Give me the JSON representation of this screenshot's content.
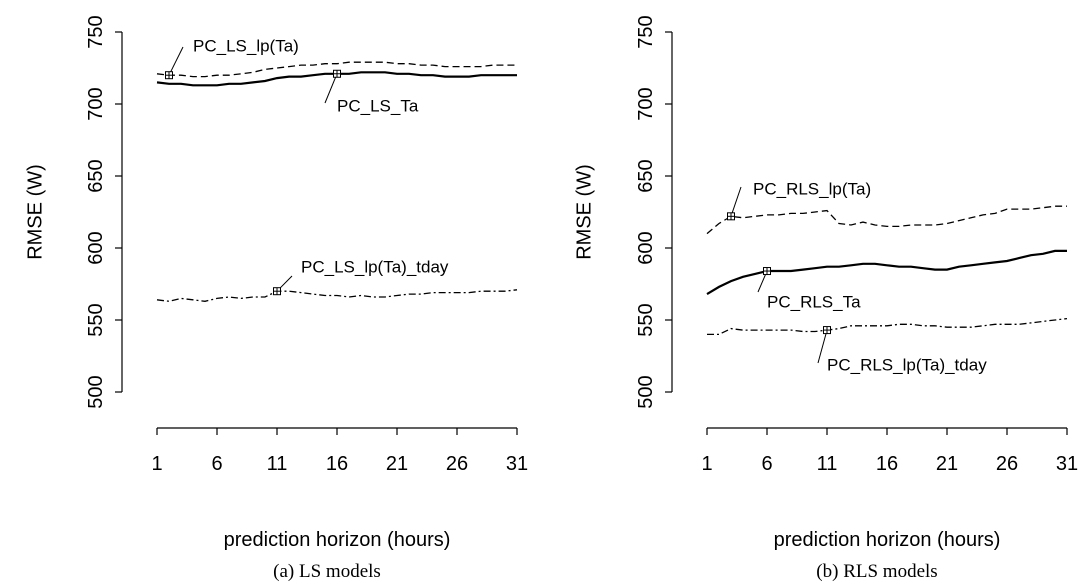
{
  "chart_data": [
    {
      "type": "line",
      "caption": "(a) LS models",
      "xlabel": "prediction horizon (hours)",
      "ylabel": "RMSE (W)",
      "xlim": [
        1,
        31
      ],
      "ylim": [
        500,
        750
      ],
      "xticks": [
        1,
        6,
        11,
        16,
        21,
        26,
        31
      ],
      "yticks": [
        500,
        550,
        600,
        650,
        700,
        750
      ],
      "series": [
        {
          "name": "PC_LS_lp(Ta)",
          "style": "dashed",
          "x": [
            1,
            2,
            3,
            4,
            5,
            6,
            7,
            8,
            9,
            10,
            11,
            12,
            13,
            14,
            15,
            16,
            17,
            18,
            19,
            20,
            21,
            22,
            23,
            24,
            25,
            26,
            27,
            28,
            29,
            30,
            31
          ],
          "values": [
            721,
            720,
            720,
            719,
            719,
            720,
            720,
            721,
            722,
            724,
            725,
            726,
            727,
            727,
            728,
            728,
            729,
            729,
            729,
            729,
            728,
            728,
            727,
            727,
            726,
            726,
            726,
            726,
            727,
            727,
            727
          ],
          "label_at_x": 2
        },
        {
          "name": "PC_LS_Ta",
          "style": "solid",
          "x": [
            1,
            2,
            3,
            4,
            5,
            6,
            7,
            8,
            9,
            10,
            11,
            12,
            13,
            14,
            15,
            16,
            17,
            18,
            19,
            20,
            21,
            22,
            23,
            24,
            25,
            26,
            27,
            28,
            29,
            30,
            31
          ],
          "values": [
            715,
            714,
            714,
            713,
            713,
            713,
            714,
            714,
            715,
            716,
            718,
            719,
            719,
            720,
            721,
            721,
            721,
            722,
            722,
            722,
            721,
            721,
            720,
            720,
            719,
            719,
            719,
            720,
            720,
            720,
            720
          ],
          "label_at_x": 16
        },
        {
          "name": "PC_LS_lp(Ta)_tday",
          "style": "dashdot",
          "x": [
            1,
            2,
            3,
            4,
            5,
            6,
            7,
            8,
            9,
            10,
            11,
            12,
            13,
            14,
            15,
            16,
            17,
            18,
            19,
            20,
            21,
            22,
            23,
            24,
            25,
            26,
            27,
            28,
            29,
            30,
            31
          ],
          "values": [
            564,
            563,
            565,
            564,
            563,
            565,
            566,
            565,
            566,
            566,
            570,
            570,
            569,
            568,
            567,
            567,
            566,
            567,
            566,
            566,
            567,
            568,
            568,
            569,
            569,
            569,
            569,
            570,
            570,
            570,
            571
          ],
          "label_at_x": 11
        }
      ]
    },
    {
      "type": "line",
      "caption": "(b) RLS models",
      "xlabel": "prediction horizon (hours)",
      "ylabel": "RMSE (W)",
      "xlim": [
        1,
        31
      ],
      "ylim": [
        500,
        750
      ],
      "xticks": [
        1,
        6,
        11,
        16,
        21,
        26,
        31
      ],
      "yticks": [
        500,
        550,
        600,
        650,
        700,
        750
      ],
      "series": [
        {
          "name": "PC_RLS_lp(Ta)",
          "style": "dashed",
          "x": [
            1,
            2,
            3,
            4,
            5,
            6,
            7,
            8,
            9,
            10,
            11,
            12,
            13,
            14,
            15,
            16,
            17,
            18,
            19,
            20,
            21,
            22,
            23,
            24,
            25,
            26,
            27,
            28,
            29,
            30,
            31
          ],
          "values": [
            610,
            617,
            622,
            621,
            622,
            623,
            623,
            624,
            624,
            625,
            626,
            617,
            616,
            618,
            616,
            615,
            615,
            616,
            616,
            616,
            617,
            619,
            621,
            623,
            624,
            627,
            627,
            627,
            628,
            629,
            629
          ],
          "label_at_x": 3
        },
        {
          "name": "PC_RLS_Ta",
          "style": "solid",
          "x": [
            1,
            2,
            3,
            4,
            5,
            6,
            7,
            8,
            9,
            10,
            11,
            12,
            13,
            14,
            15,
            16,
            17,
            18,
            19,
            20,
            21,
            22,
            23,
            24,
            25,
            26,
            27,
            28,
            29,
            30,
            31
          ],
          "values": [
            568,
            573,
            577,
            580,
            582,
            584,
            584,
            584,
            585,
            586,
            587,
            587,
            588,
            589,
            589,
            588,
            587,
            587,
            586,
            585,
            585,
            587,
            588,
            589,
            590,
            591,
            593,
            595,
            596,
            598,
            598
          ],
          "label_at_x": 6
        },
        {
          "name": "PC_RLS_lp(Ta)_tday",
          "style": "dashdot",
          "x": [
            1,
            2,
            3,
            4,
            5,
            6,
            7,
            8,
            9,
            10,
            11,
            12,
            13,
            14,
            15,
            16,
            17,
            18,
            19,
            20,
            21,
            22,
            23,
            24,
            25,
            26,
            27,
            28,
            29,
            30,
            31
          ],
          "values": [
            540,
            540,
            544,
            543,
            543,
            543,
            543,
            543,
            542,
            542,
            543,
            544,
            546,
            546,
            546,
            546,
            547,
            547,
            546,
            546,
            545,
            545,
            545,
            546,
            547,
            547,
            547,
            548,
            549,
            550,
            551
          ],
          "label_at_x": 11
        }
      ]
    }
  ]
}
